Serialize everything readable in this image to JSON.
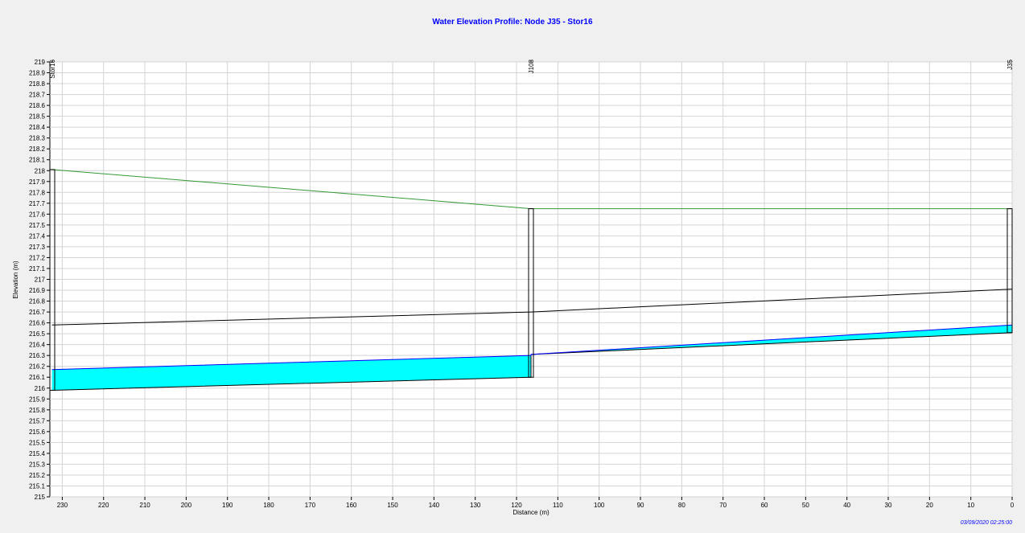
{
  "chart_data": {
    "type": "line",
    "title": "Water Elevation Profile: Node J35 - Stor16",
    "xlabel": "Distance (m)",
    "ylabel": "Elevation (m)",
    "timestamp": "03/09/2020 02:25:00",
    "xlim": [
      233,
      0
    ],
    "ylim": [
      215,
      219
    ],
    "x_ticks": [
      "230",
      "220",
      "210",
      "200",
      "190",
      "180",
      "170",
      "160",
      "150",
      "140",
      "130",
      "120",
      "110",
      "100",
      "90",
      "80",
      "70",
      "60",
      "50",
      "40",
      "30",
      "20",
      "10",
      "0"
    ],
    "y_ticks": [
      "219",
      "218.9",
      "218.8",
      "218.7",
      "218.6",
      "218.5",
      "218.4",
      "218.3",
      "218.2",
      "218.1",
      "218",
      "217.9",
      "217.8",
      "217.7",
      "217.6",
      "217.5",
      "217.4",
      "217.3",
      "217.2",
      "217.1",
      "217",
      "216.9",
      "216.8",
      "216.7",
      "216.6",
      "216.5",
      "216.4",
      "216.3",
      "216.2",
      "216.1",
      "216",
      "215.9",
      "215.8",
      "215.7",
      "215.6",
      "215.5",
      "215.4",
      "215.3",
      "215.2",
      "215.1",
      "215"
    ],
    "grid": true,
    "nodes": [
      {
        "name": "Stor16",
        "x": 232.5,
        "invert": 215.98,
        "top": 218.01
      },
      {
        "name": "J108",
        "x": 116.5,
        "invert": 216.1,
        "top": 217.65
      },
      {
        "name": "J35",
        "x": 0,
        "invert": 216.51,
        "top": 217.65
      }
    ],
    "series": [
      {
        "role": "ground",
        "color": "#339933",
        "x": [
          232.5,
          116.5,
          0
        ],
        "y": [
          218.01,
          217.65,
          217.65
        ]
      },
      {
        "role": "conduit-crown",
        "color": "#000000",
        "x": [
          232.5,
          116.5,
          116.5,
          0
        ],
        "y": [
          216.58,
          216.7,
          216.7,
          216.91
        ]
      },
      {
        "role": "conduit-invert",
        "color": "#000000",
        "x": [
          232.5,
          116.5,
          116.5,
          0
        ],
        "y": [
          215.98,
          216.1,
          216.31,
          216.51
        ]
      },
      {
        "role": "water-surface",
        "color": "#0000ff",
        "x": [
          232.5,
          116.5,
          116.5,
          0
        ],
        "y": [
          216.17,
          216.3,
          216.31,
          216.58
        ]
      }
    ],
    "water_fill_color": "#00ffff"
  }
}
